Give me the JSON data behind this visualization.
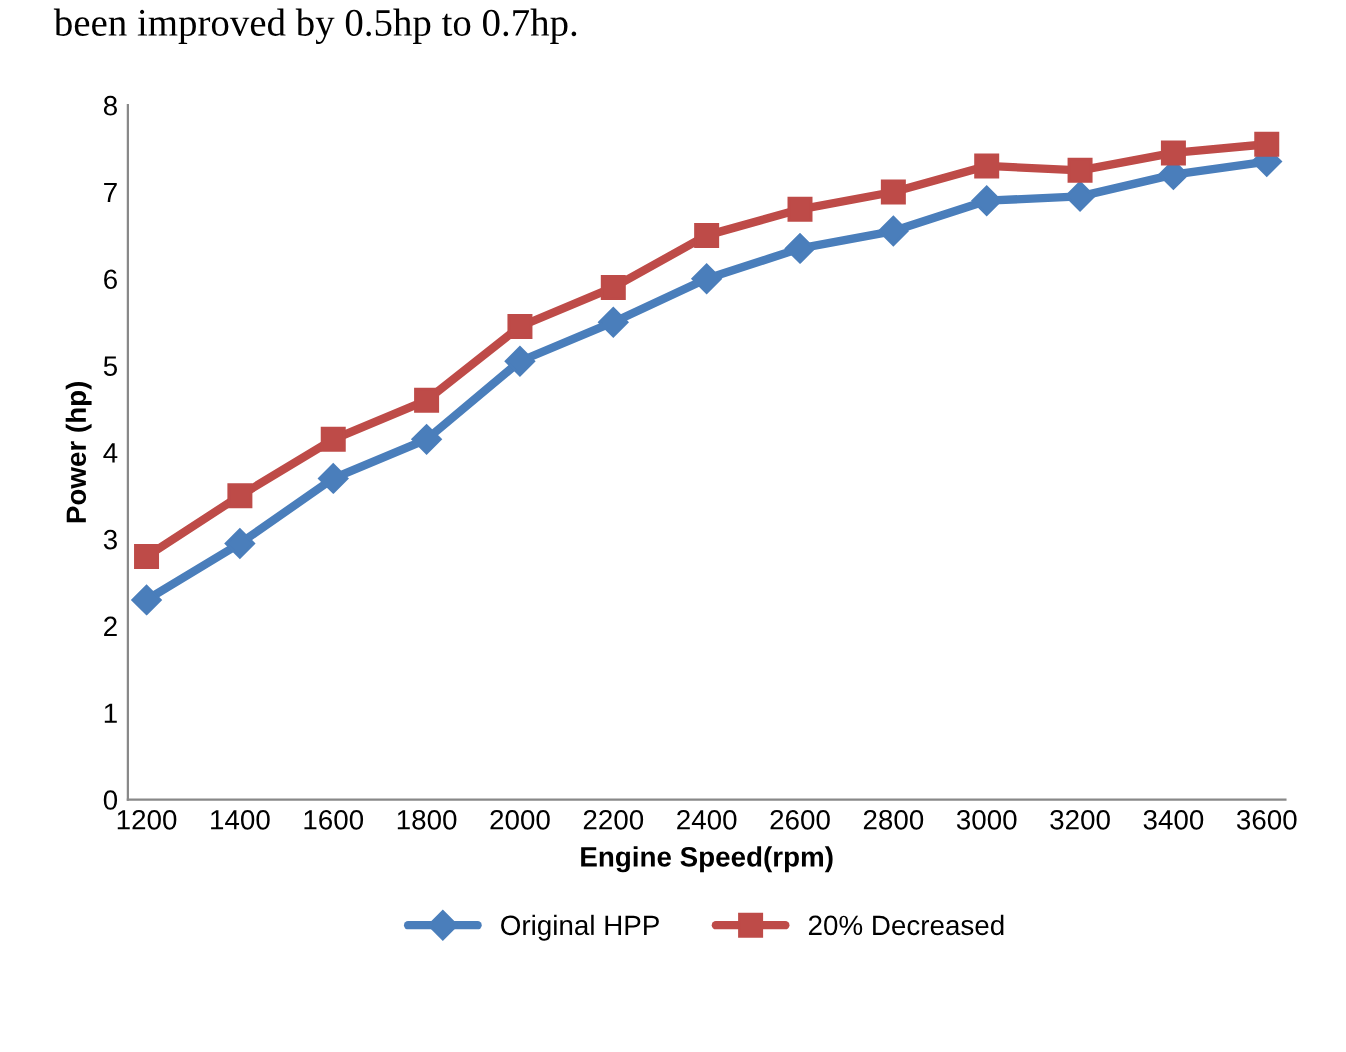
{
  "chart_data": {
    "type": "line",
    "xlabel": "Engine Speed(rpm)",
    "ylabel": "Power (hp)",
    "categories": [
      "1200",
      "1400",
      "1600",
      "1800",
      "2000",
      "2200",
      "2400",
      "2600",
      "2800",
      "3000",
      "3200",
      "3400",
      "3600"
    ],
    "series": [
      {
        "name": "Original HPP",
        "color": "#4a7ebb",
        "marker": "diamond",
        "values": [
          2.3,
          2.95,
          3.7,
          4.15,
          5.05,
          5.5,
          6.0,
          6.35,
          6.55,
          6.9,
          6.95,
          7.2,
          7.35
        ]
      },
      {
        "name": "20% Decreased",
        "color": "#be4b48",
        "marker": "square",
        "values": [
          2.8,
          3.5,
          4.15,
          4.6,
          5.45,
          5.9,
          6.5,
          6.8,
          7.0,
          7.3,
          7.25,
          7.45,
          7.55
        ]
      }
    ],
    "ylim": [
      0,
      8
    ],
    "yticks": [
      0,
      1,
      2,
      3,
      4,
      5,
      6,
      7,
      8
    ],
    "grid": false,
    "legend": "bottom",
    "annotations": [
      "been improved by 0.5hp to 0.7hp."
    ]
  }
}
